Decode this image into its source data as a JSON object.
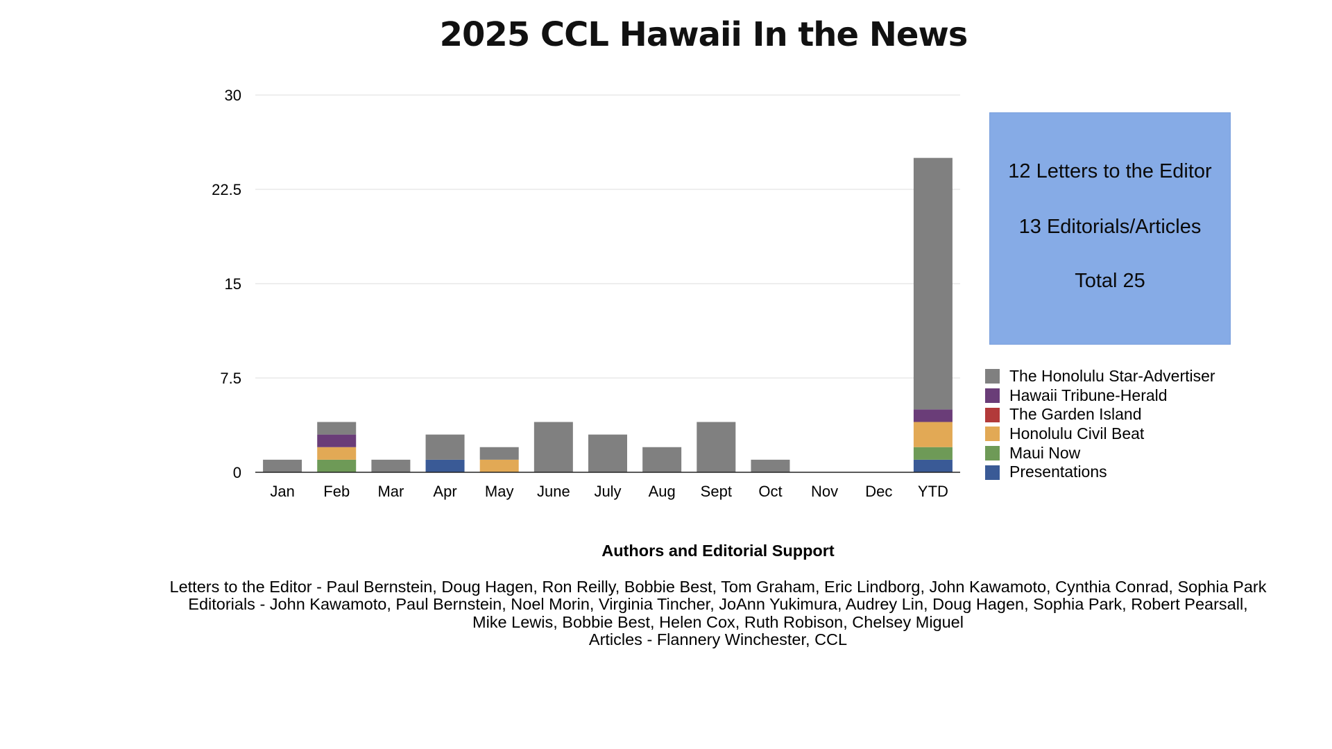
{
  "chart_data": {
    "type": "bar",
    "stacked": true,
    "title": "2025 CCL Hawaii In the News",
    "categories": [
      "Jan",
      "Feb",
      "Mar",
      "Apr",
      "May",
      "June",
      "July",
      "Aug",
      "Sept",
      "Oct",
      "Nov",
      "Dec",
      "YTD"
    ],
    "yticks": [
      "0",
      "7.5",
      "15",
      "22.5",
      "30"
    ],
    "ylim": [
      0,
      30
    ],
    "grid": true,
    "legend_position": "right",
    "series": [
      {
        "name": "Presentations",
        "color": "#3a5a96",
        "values": [
          0,
          0,
          0,
          1,
          0,
          0,
          0,
          0,
          0,
          0,
          0,
          0,
          1
        ]
      },
      {
        "name": "Maui Now",
        "color": "#6e9a57",
        "values": [
          0,
          1,
          0,
          0,
          0,
          0,
          0,
          0,
          0,
          0,
          0,
          0,
          1
        ]
      },
      {
        "name": "Honolulu Civil Beat",
        "color": "#e2a955",
        "values": [
          0,
          1,
          0,
          0,
          1,
          0,
          0,
          0,
          0,
          0,
          0,
          0,
          2
        ]
      },
      {
        "name": "The Garden Island",
        "color": "#b23a3a",
        "values": [
          0,
          0,
          0,
          0,
          0,
          0,
          0,
          0,
          0,
          0,
          0,
          0,
          0
        ]
      },
      {
        "name": "Hawaii Tribune-Herald",
        "color": "#6a3d78",
        "values": [
          0,
          1,
          0,
          0,
          0,
          0,
          0,
          0,
          0,
          0,
          0,
          0,
          1
        ]
      },
      {
        "name": "The Honolulu Star-Advertiser",
        "color": "#808080",
        "values": [
          1,
          1,
          1,
          2,
          1,
          4,
          3,
          2,
          4,
          1,
          0,
          0,
          20
        ]
      }
    ]
  },
  "legend_order": [
    "The Honolulu Star-Advertiser",
    "Hawaii Tribune-Herald",
    "The Garden Island",
    "Honolulu Civil Beat",
    "Maui Now",
    "Presentations"
  ],
  "summary": {
    "letters": "12 Letters to the Editor",
    "editorials": "13 Editorials/Articles",
    "total": "Total 25",
    "background": "#86abe6"
  },
  "credits": {
    "heading": "Authors and Editorial Support",
    "lines": [
      "Letters to the Editor - Paul Bernstein, Doug Hagen, Ron Reilly, Bobbie Best, Tom Graham, Eric Lindborg, John Kawamoto, Cynthia Conrad, Sophia Park",
      "Editorials -  John Kawamoto, Paul Bernstein, Noel Morin, Virginia Tincher, JoAnn Yukimura, Audrey Lin, Doug Hagen, Sophia Park, Robert Pearsall,",
      "Mike Lewis, Bobbie Best, Helen Cox, Ruth Robison, Chelsey Miguel",
      "Articles - Flannery Winchester, CCL"
    ]
  }
}
